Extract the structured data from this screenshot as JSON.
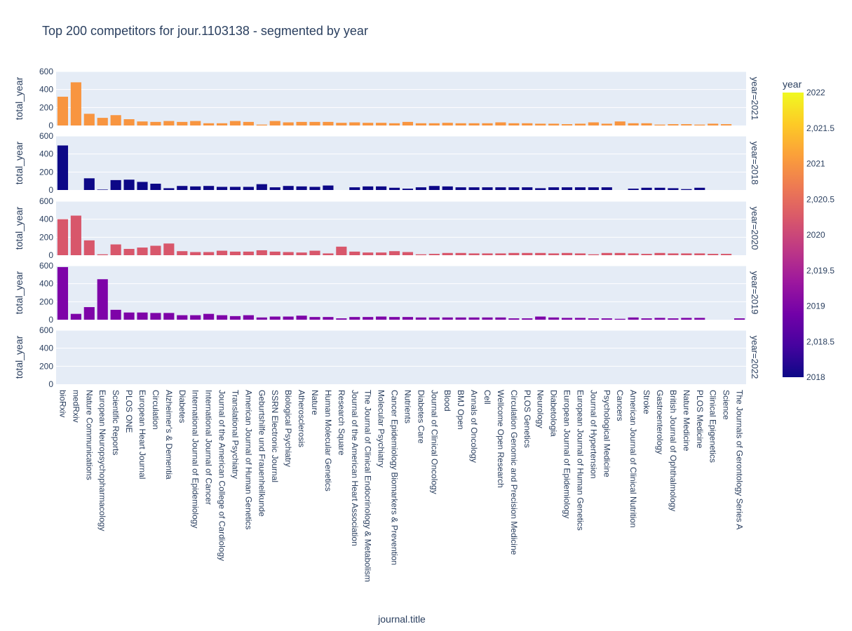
{
  "chart_data": {
    "type": "bar",
    "title": "Top 200 competitors for jour.1103138 - segmented by year",
    "xlabel": "journal.title",
    "ylabel": "total_year",
    "ylim": [
      0,
      600
    ],
    "yticks": [
      "0",
      "200",
      "400",
      "600"
    ],
    "grid": true,
    "categories": [
      "bioRxiv",
      "medRxiv",
      "Nature Communications",
      "European Neuropsychopharmacology",
      "Scientific Reports",
      "PLOS ONE",
      "European Heart Journal",
      "Circulation",
      "Alzheimer's & Dementia",
      "Diabetes",
      "International Journal of Epidemiology",
      "International Journal of Cancer",
      "Journal of the American College of Cardiology",
      "Translational Psychiatry",
      "American Journal of Human Genetics",
      "Geburtshilfe und Frauenheilkunde",
      "SSRN Electronic Journal",
      "Biological Psychiatry",
      "Atherosclerosis",
      "Nature",
      "Human Molecular Genetics",
      "Research Square",
      "Journal of the American Heart Association",
      "The Journal of Clinical Endocrinology & Metabolism",
      "Molecular Psychiatry",
      "Cancer Epidemiology Biomarkers & Prevention",
      "Nutrients",
      "Diabetes Care",
      "Journal of Clinical Oncology",
      "Blood",
      "BMJ Open",
      "Annals of Oncology",
      "Cell",
      "Wellcome Open Research",
      "Circulation Genomic and Precision Medicine",
      "PLOS Genetics",
      "Neurology",
      "Diabetologia",
      "European Journal of Epidemiology",
      "European Journal of Human Genetics",
      "Journal of Hypertension",
      "Psychological Medicine",
      "Cancers",
      "American Journal of Clinical Nutrition",
      "Stroke",
      "Gastroenterology",
      "British Journal of Ophthalmology",
      "Nature Medicine",
      "PLOS Medicine",
      "Clinical Epigenetics",
      "Science",
      "The Journals of Gerontology Series A"
    ],
    "series": [
      {
        "name": "year=2021",
        "year": 2021,
        "color": "#f89540",
        "values": [
          320,
          480,
          130,
          85,
          115,
          70,
          45,
          40,
          50,
          40,
          50,
          25,
          25,
          50,
          40,
          10,
          50,
          35,
          40,
          40,
          40,
          30,
          35,
          30,
          30,
          25,
          40,
          25,
          25,
          30,
          25,
          25,
          25,
          35,
          25,
          25,
          20,
          20,
          15,
          20,
          35,
          20,
          45,
          25,
          25,
          10,
          15,
          15,
          10,
          20,
          15,
          0
        ]
      },
      {
        "name": "year=2018",
        "year": 2018,
        "color": "#0d0887",
        "values": [
          495,
          0,
          130,
          5,
          110,
          115,
          90,
          70,
          20,
          45,
          40,
          45,
          35,
          35,
          35,
          65,
          30,
          45,
          40,
          35,
          50,
          0,
          30,
          40,
          40,
          25,
          15,
          30,
          45,
          40,
          30,
          30,
          30,
          30,
          30,
          30,
          20,
          30,
          30,
          30,
          30,
          30,
          0,
          15,
          25,
          25,
          20,
          10,
          25,
          0,
          0,
          0
        ]
      },
      {
        "name": "year=2020",
        "year": 2020,
        "color": "#d8576b",
        "values": [
          400,
          440,
          165,
          10,
          120,
          70,
          85,
          105,
          130,
          45,
          35,
          35,
          50,
          40,
          40,
          55,
          40,
          35,
          30,
          50,
          20,
          95,
          40,
          30,
          30,
          45,
          35,
          10,
          15,
          25,
          25,
          20,
          20,
          20,
          25,
          25,
          25,
          20,
          25,
          20,
          10,
          25,
          25,
          20,
          15,
          25,
          20,
          20,
          20,
          15,
          15,
          0
        ]
      },
      {
        "name": "year=2019",
        "year": 2019,
        "color": "#7e03a8",
        "values": [
          585,
          65,
          140,
          450,
          110,
          80,
          80,
          75,
          75,
          50,
          50,
          65,
          50,
          40,
          50,
          25,
          35,
          35,
          45,
          30,
          30,
          15,
          30,
          30,
          35,
          30,
          30,
          25,
          25,
          25,
          25,
          25,
          25,
          25,
          15,
          15,
          35,
          25,
          20,
          20,
          15,
          15,
          10,
          25,
          15,
          20,
          15,
          20,
          20,
          0,
          0,
          15
        ]
      },
      {
        "name": "year=2022",
        "year": 2022,
        "color": "#f0f921",
        "values": [
          0,
          0,
          0,
          0,
          0,
          0,
          0,
          0,
          0,
          0,
          0,
          0,
          0,
          0,
          0,
          0,
          0,
          0,
          0,
          0,
          0,
          0,
          0,
          0,
          0,
          0,
          0,
          0,
          0,
          0,
          0,
          0,
          0,
          0,
          0,
          0,
          0,
          0,
          0,
          0,
          0,
          0,
          0,
          0,
          0,
          0,
          0,
          0,
          0,
          0,
          0,
          0
        ]
      }
    ],
    "colorbar": {
      "title": "year",
      "range": [
        2018,
        2022
      ],
      "ticks": [
        "2018",
        "2,018.5",
        "2019",
        "2,019.5",
        "2020",
        "2,020.5",
        "2021",
        "2,021.5",
        "2022"
      ],
      "colors": [
        "#0d0887",
        "#46039f",
        "#7201a8",
        "#9c179e",
        "#bd3786",
        "#d8576b",
        "#ed7953",
        "#fb9f3a",
        "#fdca26",
        "#f0f921"
      ]
    }
  }
}
